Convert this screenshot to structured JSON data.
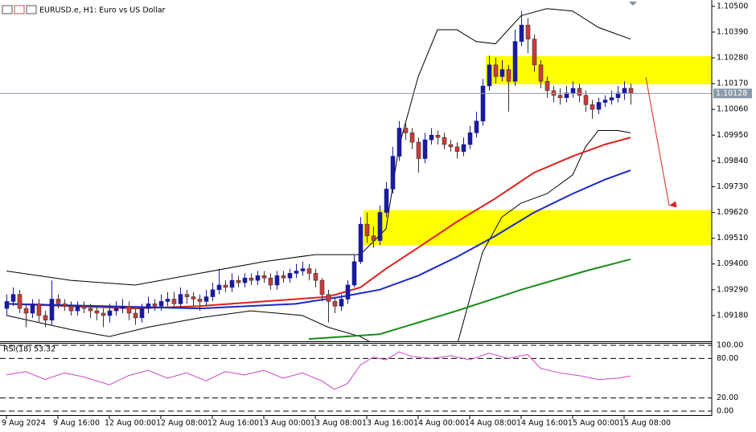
{
  "chart_data": {
    "type": "candlestick",
    "title": "EURUSD.e, H1:  Euro vs US Dollar",
    "up_color": "#1a1a9e",
    "down_color": "#cc3b3b",
    "ylim": [
      1.0907,
      1.10527
    ],
    "yticks": [
      {
        "value": 1.105,
        "label": "1.10500"
      },
      {
        "value": 1.1039,
        "label": "1.10390"
      },
      {
        "value": 1.1028,
        "label": "1.10280"
      },
      {
        "value": 1.1017,
        "label": "1.10170"
      },
      {
        "value": 1.1006,
        "label": "1.10060"
      },
      {
        "value": 1.0995,
        "label": "1.09950"
      },
      {
        "value": 1.0984,
        "label": "1.09840"
      },
      {
        "value": 1.0973,
        "label": "1.09730"
      },
      {
        "value": 1.0962,
        "label": "1.09620"
      },
      {
        "value": 1.0951,
        "label": "1.09510"
      },
      {
        "value": 1.094,
        "label": "1.09400"
      },
      {
        "value": 1.0929,
        "label": "1.09290"
      },
      {
        "value": 1.0918,
        "label": "1.09180"
      }
    ],
    "xticks": [
      {
        "value": 0,
        "label": "9 Aug 2024"
      },
      {
        "value": 8,
        "label": "9 Aug 16:00"
      },
      {
        "value": 16,
        "label": "12 Aug 00:00"
      },
      {
        "value": 24,
        "label": "12 Aug 08:00"
      },
      {
        "value": 32,
        "label": "12 Aug 16:00"
      },
      {
        "value": 40,
        "label": "13 Aug 00:00"
      },
      {
        "value": 48,
        "label": "13 Aug 08:00"
      },
      {
        "value": 56,
        "label": "13 Aug 16:00"
      },
      {
        "value": 64,
        "label": "14 Aug 00:00"
      },
      {
        "value": 72,
        "label": "14 Aug 08:00"
      },
      {
        "value": 80,
        "label": "14 Aug 16:00"
      },
      {
        "value": 88,
        "label": "15 Aug 00:00"
      },
      {
        "value": 96,
        "label": "15 Aug 08:00"
      }
    ],
    "current_price": {
      "value": 1.10128,
      "label": "1.10128"
    },
    "candles": [
      [
        1.0921,
        1.0927,
        1.0918,
        1.0924
      ],
      [
        1.0924,
        1.093,
        1.0922,
        1.0927
      ],
      [
        1.0927,
        1.0929,
        1.0919,
        1.0921
      ],
      [
        1.0921,
        1.0923,
        1.0913,
        1.0919
      ],
      [
        1.0919,
        1.0925,
        1.0917,
        1.0923
      ],
      [
        1.0923,
        1.0925,
        1.0915,
        1.0918
      ],
      [
        1.0918,
        1.092,
        1.0913,
        1.0916
      ],
      [
        1.0916,
        1.0933,
        1.0914,
        1.0925
      ],
      [
        1.0925,
        1.0927,
        1.0921,
        1.0923
      ],
      [
        1.0923,
        1.0925,
        1.092,
        1.0922
      ],
      [
        1.0922,
        1.0924,
        1.0918,
        1.092
      ],
      [
        1.092,
        1.0924,
        1.0918,
        1.0922
      ],
      [
        1.0922,
        1.0924,
        1.0919,
        1.0921
      ],
      [
        1.0921,
        1.0923,
        1.0917,
        1.092
      ],
      [
        1.092,
        1.0922,
        1.0916,
        1.0919
      ],
      [
        1.0919,
        1.0921,
        1.0913,
        1.0918
      ],
      [
        1.0918,
        1.0923,
        1.0915,
        1.092
      ],
      [
        1.092,
        1.0924,
        1.0918,
        1.0921
      ],
      [
        1.0921,
        1.0925,
        1.0919,
        1.0922
      ],
      [
        1.0922,
        1.0924,
        1.0916,
        1.0919
      ],
      [
        1.0919,
        1.0921,
        1.0914,
        1.0917
      ],
      [
        1.0917,
        1.0923,
        1.0915,
        1.0921
      ],
      [
        1.0921,
        1.0926,
        1.0919,
        1.0923
      ],
      [
        1.0923,
        1.0925,
        1.092,
        1.0922
      ],
      [
        1.0922,
        1.0927,
        1.092,
        1.0924
      ],
      [
        1.0924,
        1.0928,
        1.0922,
        1.0925
      ],
      [
        1.0925,
        1.0928,
        1.0921,
        1.0923
      ],
      [
        1.0923,
        1.093,
        1.0921,
        1.0927
      ],
      [
        1.0927,
        1.0929,
        1.0923,
        1.0926
      ],
      [
        1.0926,
        1.0928,
        1.0922,
        1.0925
      ],
      [
        1.0925,
        1.0927,
        1.092,
        1.0924
      ],
      [
        1.0924,
        1.0929,
        1.0922,
        1.0926
      ],
      [
        1.0926,
        1.0932,
        1.0924,
        1.0929
      ],
      [
        1.0929,
        1.0938,
        1.0927,
        1.0931
      ],
      [
        1.0931,
        1.0933,
        1.0928,
        1.093
      ],
      [
        1.093,
        1.0936,
        1.0928,
        1.0933
      ],
      [
        1.0933,
        1.0935,
        1.093,
        1.0932
      ],
      [
        1.0932,
        1.0936,
        1.093,
        1.0934
      ],
      [
        1.0934,
        1.0936,
        1.0931,
        1.0933
      ],
      [
        1.0933,
        1.0937,
        1.0931,
        1.0935
      ],
      [
        1.0935,
        1.0937,
        1.0932,
        1.0934
      ],
      [
        1.0934,
        1.0936,
        1.0929,
        1.0931
      ],
      [
        1.0931,
        1.0937,
        1.0929,
        1.0935
      ],
      [
        1.0935,
        1.0937,
        1.0932,
        1.0934
      ],
      [
        1.0934,
        1.0938,
        1.0932,
        1.0936
      ],
      [
        1.0936,
        1.094,
        1.0934,
        1.0937
      ],
      [
        1.0937,
        1.0941,
        1.0935,
        1.0938
      ],
      [
        1.0938,
        1.094,
        1.0933,
        1.0936
      ],
      [
        1.0936,
        1.0938,
        1.093,
        1.0933
      ],
      [
        1.0933,
        1.0934,
        1.0924,
        1.0927
      ],
      [
        1.0927,
        1.0929,
        1.0915,
        1.0924
      ],
      [
        1.0924,
        1.0926,
        1.0919,
        1.0922
      ],
      [
        1.0922,
        1.0927,
        1.092,
        1.0925
      ],
      [
        1.0925,
        1.0933,
        1.0923,
        1.0931
      ],
      [
        1.0931,
        1.0944,
        1.093,
        1.0941
      ],
      [
        1.0941,
        1.096,
        1.094,
        1.0957
      ],
      [
        1.0957,
        1.0962,
        1.0949,
        1.0952
      ],
      [
        1.0952,
        1.0956,
        1.0947,
        1.095
      ],
      [
        1.095,
        1.0965,
        1.0948,
        1.0962
      ],
      [
        1.0962,
        1.0975,
        1.096,
        1.0972
      ],
      [
        1.0972,
        1.099,
        1.097,
        1.0986
      ],
      [
        1.0986,
        1.1001,
        1.0984,
        1.0998
      ],
      [
        1.0998,
        1.1,
        1.0993,
        1.0996
      ],
      [
        1.0996,
        1.0998,
        1.0989,
        1.0992
      ],
      [
        1.0992,
        1.0994,
        1.0979,
        1.0985
      ],
      [
        1.0985,
        1.0996,
        1.0983,
        1.0993
      ],
      [
        1.0993,
        1.0998,
        1.0991,
        1.0995
      ],
      [
        1.0995,
        1.0997,
        1.0991,
        1.0994
      ],
      [
        1.0994,
        1.0996,
        1.0989,
        1.0991
      ],
      [
        1.0991,
        1.0993,
        1.0988,
        1.099
      ],
      [
        1.099,
        1.0992,
        1.0985,
        1.0988
      ],
      [
        1.0988,
        1.0994,
        1.0986,
        1.0991
      ],
      [
        1.0991,
        1.0999,
        1.0989,
        1.0996
      ],
      [
        1.0996,
        1.1005,
        1.0994,
        1.1001
      ],
      [
        1.1001,
        1.1019,
        1.0999,
        1.1016
      ],
      [
        1.1016,
        1.1029,
        1.1014,
        1.1025
      ],
      [
        1.1025,
        1.1028,
        1.1017,
        1.102
      ],
      [
        1.102,
        1.1027,
        1.1018,
        1.1023
      ],
      [
        1.1023,
        1.1025,
        1.1005,
        1.1018
      ],
      [
        1.1018,
        1.104,
        1.1016,
        1.1035
      ],
      [
        1.1035,
        1.1048,
        1.1033,
        1.1042
      ],
      [
        1.1042,
        1.1045,
        1.103,
        1.1036
      ],
      [
        1.1036,
        1.1038,
        1.1022,
        1.1025
      ],
      [
        1.1025,
        1.1027,
        1.1015,
        1.1018
      ],
      [
        1.1018,
        1.102,
        1.1011,
        1.1014
      ],
      [
        1.1014,
        1.1016,
        1.1009,
        1.1012
      ],
      [
        1.1012,
        1.1015,
        1.1008,
        1.1011
      ],
      [
        1.1011,
        1.1016,
        1.1009,
        1.1013
      ],
      [
        1.1013,
        1.1018,
        1.1011,
        1.1015
      ],
      [
        1.1015,
        1.1017,
        1.1009,
        1.1012
      ],
      [
        1.1012,
        1.1014,
        1.1005,
        1.1008
      ],
      [
        1.1008,
        1.101,
        1.1002,
        1.1006
      ],
      [
        1.1006,
        1.1011,
        1.1004,
        1.1009
      ],
      [
        1.1009,
        1.1012,
        1.1007,
        1.101
      ],
      [
        1.101,
        1.1014,
        1.1008,
        1.1011
      ],
      [
        1.1011,
        1.1016,
        1.1009,
        1.1013
      ],
      [
        1.1013,
        1.1018,
        1.101,
        1.1015
      ],
      [
        1.1015,
        1.1017,
        1.1008,
        1.1013
      ]
    ],
    "overlays": [
      {
        "color": "#000000",
        "x": [
          0,
          10,
          20,
          30,
          40,
          48,
          55,
          59,
          61,
          64,
          67,
          70,
          73,
          76,
          80,
          84,
          88,
          92,
          97
        ],
        "values": [
          1.0937,
          1.0933,
          1.0931,
          1.0936,
          1.0941,
          1.0944,
          1.0944,
          1.0955,
          1.099,
          1.102,
          1.104,
          1.104,
          1.1035,
          1.1034,
          1.1046,
          1.1049,
          1.1048,
          1.1041,
          1.1036
        ]
      },
      {
        "color": "#000000",
        "x": [
          0,
          10,
          16,
          22,
          30,
          38,
          46,
          50,
          55,
          57,
          60,
          64,
          68,
          70,
          72,
          74,
          77,
          80,
          84,
          88,
          90,
          92,
          95,
          97
        ],
        "values": [
          1.0918,
          1.0912,
          1.0909,
          1.0913,
          1.0917,
          1.092,
          1.0918,
          1.0913,
          1.0909,
          1.0906,
          1.0895,
          1.0885,
          1.089,
          1.0905,
          1.0925,
          1.0945,
          1.096,
          1.0966,
          1.097,
          1.0978,
          1.099,
          1.0997,
          1.0997,
          1.0996
        ]
      },
      {
        "color": "#e0201a",
        "x": [
          0,
          10,
          20,
          30,
          40,
          50,
          55,
          59,
          64,
          70,
          76,
          82,
          88,
          93,
          97
        ],
        "values": [
          1.0923,
          1.0922,
          1.0921,
          1.0922,
          1.0924,
          1.0926,
          1.093,
          1.0938,
          1.0947,
          1.0958,
          1.0968,
          1.0979,
          1.0986,
          1.0991,
          1.0994
        ]
      },
      {
        "color": "#1a28c8",
        "x": [
          0,
          15,
          30,
          45,
          52,
          58,
          64,
          70,
          76,
          82,
          88,
          93,
          97
        ],
        "values": [
          1.0923,
          1.0922,
          1.0921,
          1.0923,
          1.0926,
          1.0929,
          1.0935,
          1.0943,
          1.0952,
          1.0962,
          1.097,
          1.0976,
          1.098
        ]
      },
      {
        "color": "#1a8a1a",
        "x": [
          47,
          58,
          70,
          80,
          90,
          97
        ],
        "values": [
          1.0908,
          1.091,
          1.092,
          1.0929,
          1.0937,
          1.0942
        ]
      }
    ],
    "zones": [
      {
        "from": 1.0948,
        "to": 1.0963,
        "start": 56,
        "color": "#ffff00"
      },
      {
        "from": 1.10167,
        "to": 1.10287,
        "start": 75,
        "color": "#ffff00"
      }
    ],
    "rsi": {
      "label": "RSI(18) 53.32",
      "color": "#cc44cc",
      "ylim": [
        0,
        100
      ],
      "yticks": [
        {
          "value": 100,
          "label": "100.00"
        },
        {
          "value": 80,
          "label": "80.00"
        },
        {
          "value": 20,
          "label": "20.00"
        },
        {
          "value": 0,
          "label": "0.00"
        }
      ],
      "x": [
        0,
        3,
        6,
        9,
        12,
        16,
        19,
        22,
        25,
        28,
        31,
        34,
        37,
        40,
        43,
        46,
        49,
        51,
        53,
        55,
        57,
        59,
        61,
        63,
        66,
        69,
        72,
        75,
        78,
        81,
        83,
        86,
        89,
        92,
        95,
        97
      ],
      "values": [
        55,
        60,
        48,
        58,
        52,
        40,
        54,
        62,
        50,
        58,
        46,
        60,
        55,
        62,
        50,
        58,
        46,
        33,
        42,
        70,
        82,
        78,
        90,
        83,
        80,
        84,
        78,
        88,
        80,
        86,
        65,
        58,
        54,
        48,
        50,
        53.32
      ]
    }
  }
}
